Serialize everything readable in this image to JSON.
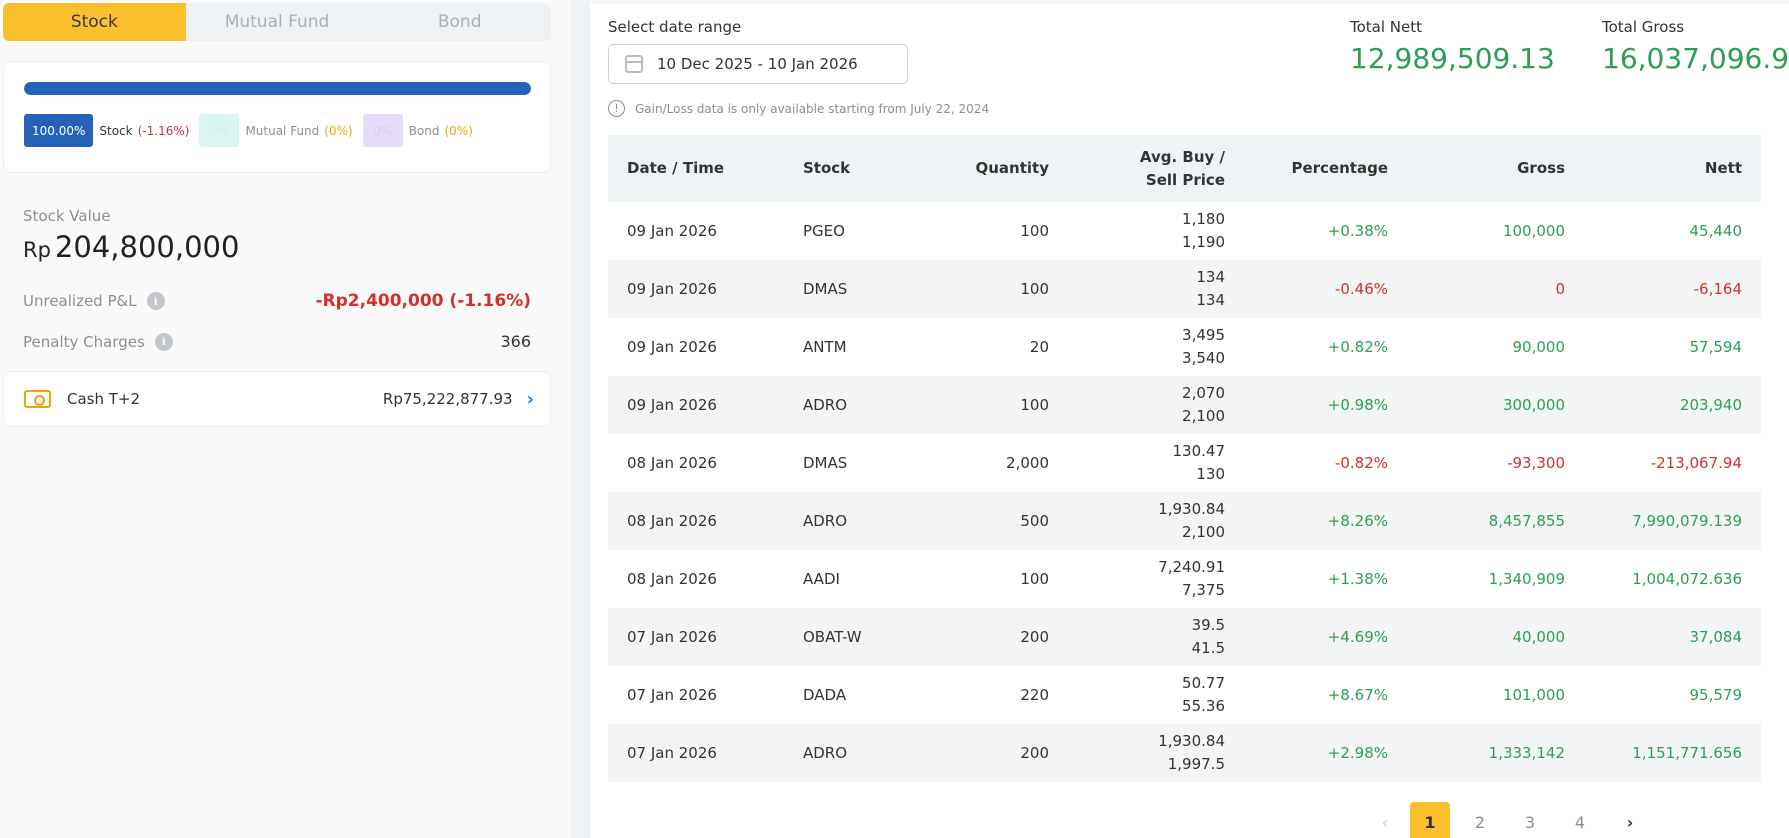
{
  "tabs": [
    {
      "label": "Stock",
      "active": true
    },
    {
      "label": "Mutual Fund",
      "active": false
    },
    {
      "label": "Bond",
      "active": false
    }
  ],
  "allocation": {
    "stock_fill_fraction": 1.0,
    "stock": {
      "chip": "100.00%",
      "label": "Stock",
      "pct": "(-1.16%)"
    },
    "mutual_fund": {
      "chip": "0%",
      "label": "Mutual Fund",
      "pct": "(0%)"
    },
    "bond": {
      "chip": "0%",
      "label": "Bond",
      "pct": "(0%)"
    }
  },
  "summary": {
    "stock_value_label": "Stock Value",
    "currency": "Rp",
    "stock_value": "204,800,000",
    "unrealized_label": "Unrealized P&L",
    "unrealized_value": "-Rp2,400,000 (-1.16%)",
    "penalty_label": "Penalty Charges",
    "penalty_value": "366",
    "info_glyph": "i"
  },
  "cash": {
    "label": "Cash T+2",
    "value": "Rp75,222,877.93",
    "chevron": "›"
  },
  "filters": {
    "date_label": "Select date range",
    "date_value": "10 Dec 2025 - 10 Jan 2026",
    "note": "Gain/Loss data is only available starting from July 22, 2024",
    "note_glyph": "!"
  },
  "totals": {
    "nett_label": "Total Nett",
    "nett_value": "12,989,509.13",
    "gross_label": "Total Gross",
    "gross_value": "16,037,096.9"
  },
  "table": {
    "headers": {
      "date": "Date / Time",
      "stock": "Stock",
      "quantity": "Quantity",
      "price_line1": "Avg. Buy /",
      "price_line2": "Sell Price",
      "percentage": "Percentage",
      "gross": "Gross",
      "nett": "Nett"
    },
    "rows": [
      {
        "date": "09 Jan 2026",
        "stock": "PGEO",
        "qty": "100",
        "buy": "1,180",
        "sell": "1,190",
        "pct": "+0.38%",
        "gross": "100,000",
        "nett": "45,440",
        "gross_sign": "pos",
        "nett_sign": "pos",
        "pct_sign": "pos"
      },
      {
        "date": "09 Jan 2026",
        "stock": "DMAS",
        "qty": "100",
        "buy": "134",
        "sell": "134",
        "pct": "-0.46%",
        "gross": "0",
        "nett": "-6,164",
        "gross_sign": "neg",
        "nett_sign": "neg",
        "pct_sign": "neg"
      },
      {
        "date": "09 Jan 2026",
        "stock": "ANTM",
        "qty": "20",
        "buy": "3,495",
        "sell": "3,540",
        "pct": "+0.82%",
        "gross": "90,000",
        "nett": "57,594",
        "gross_sign": "pos",
        "nett_sign": "pos",
        "pct_sign": "pos"
      },
      {
        "date": "09 Jan 2026",
        "stock": "ADRO",
        "qty": "100",
        "buy": "2,070",
        "sell": "2,100",
        "pct": "+0.98%",
        "gross": "300,000",
        "nett": "203,940",
        "gross_sign": "pos",
        "nett_sign": "pos",
        "pct_sign": "pos"
      },
      {
        "date": "08 Jan 2026",
        "stock": "DMAS",
        "qty": "2,000",
        "buy": "130.47",
        "sell": "130",
        "pct": "-0.82%",
        "gross": "-93,300",
        "nett": "-213,067.94",
        "gross_sign": "neg",
        "nett_sign": "neg",
        "pct_sign": "neg"
      },
      {
        "date": "08 Jan 2026",
        "stock": "ADRO",
        "qty": "500",
        "buy": "1,930.84",
        "sell": "2,100",
        "pct": "+8.26%",
        "gross": "8,457,855",
        "nett": "7,990,079.139",
        "gross_sign": "pos",
        "nett_sign": "pos",
        "pct_sign": "pos"
      },
      {
        "date": "08 Jan 2026",
        "stock": "AADI",
        "qty": "100",
        "buy": "7,240.91",
        "sell": "7,375",
        "pct": "+1.38%",
        "gross": "1,340,909",
        "nett": "1,004,072.636",
        "gross_sign": "pos",
        "nett_sign": "pos",
        "pct_sign": "pos"
      },
      {
        "date": "07 Jan 2026",
        "stock": "OBAT-W",
        "qty": "200",
        "buy": "39.5",
        "sell": "41.5",
        "pct": "+4.69%",
        "gross": "40,000",
        "nett": "37,084",
        "gross_sign": "pos",
        "nett_sign": "pos",
        "pct_sign": "pos"
      },
      {
        "date": "07 Jan 2026",
        "stock": "DADA",
        "qty": "220",
        "buy": "50.77",
        "sell": "55.36",
        "pct": "+8.67%",
        "gross": "101,000",
        "nett": "95,579",
        "gross_sign": "pos",
        "nett_sign": "pos",
        "pct_sign": "pos"
      },
      {
        "date": "07 Jan 2026",
        "stock": "ADRO",
        "qty": "200",
        "buy": "1,930.84",
        "sell": "1,997.5",
        "pct": "+2.98%",
        "gross": "1,333,142",
        "nett": "1,151,771.656",
        "gross_sign": "pos",
        "nett_sign": "pos",
        "pct_sign": "pos"
      }
    ]
  },
  "pagination": {
    "prev": "‹",
    "pages": [
      "1",
      "2",
      "3",
      "4"
    ],
    "current": "1",
    "next": "›"
  },
  "colors": {
    "accent": "#fbc02d",
    "stock_blue": "#2563b8",
    "positive": "#2e9e55",
    "negative": "#d32f2f",
    "warning": "#f0a500"
  },
  "icons": {
    "cash": "cash-icon",
    "calendar": "calendar-icon",
    "info": "info-icon",
    "chevron": "chevron-right-icon"
  }
}
